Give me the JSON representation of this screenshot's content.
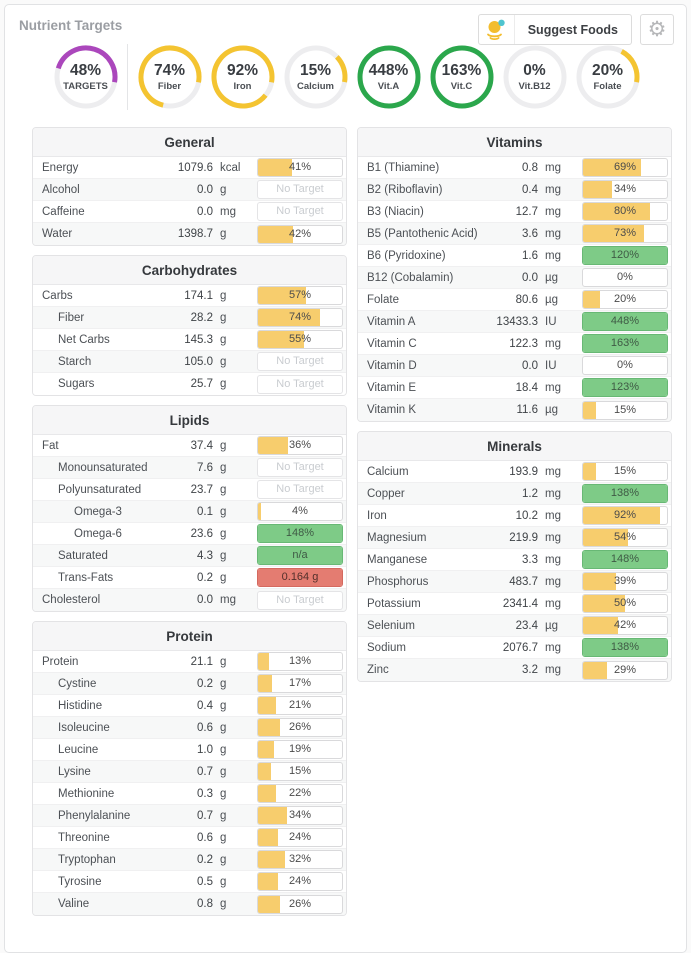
{
  "header": {
    "title": "Nutrient Targets",
    "suggest_button_label": "Suggest Foods"
  },
  "colors": {
    "ring_purple": "#ab47bc",
    "ring_yellow": "#f4c431",
    "ring_green": "#2ba74c",
    "ring_track": "#ededef",
    "bar_yellow": "#f7cd6d",
    "bar_green": "#7ecb87",
    "bar_red": "#e47c71",
    "icon_yellow": "#f3bd2e",
    "icon_teal": "#4fc4cf"
  },
  "rings": [
    {
      "pct": 48,
      "pct_text": "48%",
      "label": "TARGETS",
      "color": "purple"
    },
    {
      "pct": 74,
      "pct_text": "74%",
      "label": "Fiber",
      "color": "yellow"
    },
    {
      "pct": 92,
      "pct_text": "92%",
      "label": "Iron",
      "color": "yellow"
    },
    {
      "pct": 15,
      "pct_text": "15%",
      "label": "Calcium",
      "color": "yellow"
    },
    {
      "pct": 448,
      "pct_text": "448%",
      "label": "Vit.A",
      "color": "green"
    },
    {
      "pct": 163,
      "pct_text": "163%",
      "label": "Vit.C",
      "color": "green"
    },
    {
      "pct": 0,
      "pct_text": "0%",
      "label": "Vit.B12",
      "color": "yellow"
    },
    {
      "pct": 20,
      "pct_text": "20%",
      "label": "Folate",
      "color": "yellow"
    }
  ],
  "layout_columns": {
    "left": [
      "general",
      "carbohydrates",
      "lipids",
      "protein"
    ],
    "right": [
      "vitamins",
      "minerals"
    ]
  },
  "tables": {
    "general": {
      "title": "General",
      "rows": [
        {
          "label": "Energy",
          "value": "1079.6",
          "unit": "kcal",
          "indent": 0,
          "bar": {
            "kind": "yellow",
            "pct": 41,
            "text": "41%"
          }
        },
        {
          "label": "Alcohol",
          "value": "0.0",
          "unit": "g",
          "indent": 0,
          "bar": {
            "kind": "none",
            "text": "No Target"
          }
        },
        {
          "label": "Caffeine",
          "value": "0.0",
          "unit": "mg",
          "indent": 0,
          "bar": {
            "kind": "none",
            "text": "No Target"
          }
        },
        {
          "label": "Water",
          "value": "1398.7",
          "unit": "g",
          "indent": 0,
          "bar": {
            "kind": "yellow",
            "pct": 42,
            "text": "42%"
          }
        }
      ]
    },
    "carbohydrates": {
      "title": "Carbohydrates",
      "rows": [
        {
          "label": "Carbs",
          "value": "174.1",
          "unit": "g",
          "indent": 0,
          "bar": {
            "kind": "yellow",
            "pct": 57,
            "text": "57%"
          }
        },
        {
          "label": "Fiber",
          "value": "28.2",
          "unit": "g",
          "indent": 1,
          "bar": {
            "kind": "yellow",
            "pct": 74,
            "text": "74%"
          }
        },
        {
          "label": "Net Carbs",
          "value": "145.3",
          "unit": "g",
          "indent": 1,
          "bar": {
            "kind": "yellow",
            "pct": 55,
            "text": "55%"
          }
        },
        {
          "label": "Starch",
          "value": "105.0",
          "unit": "g",
          "indent": 1,
          "bar": {
            "kind": "none",
            "text": "No Target"
          }
        },
        {
          "label": "Sugars",
          "value": "25.7",
          "unit": "g",
          "indent": 1,
          "bar": {
            "kind": "none",
            "text": "No Target"
          }
        }
      ]
    },
    "lipids": {
      "title": "Lipids",
      "rows": [
        {
          "label": "Fat",
          "value": "37.4",
          "unit": "g",
          "indent": 0,
          "bar": {
            "kind": "yellow",
            "pct": 36,
            "text": "36%"
          }
        },
        {
          "label": "Monounsaturated",
          "value": "7.6",
          "unit": "g",
          "indent": 1,
          "bar": {
            "kind": "none",
            "text": "No Target"
          }
        },
        {
          "label": "Polyunsaturated",
          "value": "23.7",
          "unit": "g",
          "indent": 1,
          "bar": {
            "kind": "none",
            "text": "No Target"
          }
        },
        {
          "label": "Omega-3",
          "value": "0.1",
          "unit": "g",
          "indent": 2,
          "bar": {
            "kind": "yellow",
            "pct": 4,
            "text": "4%"
          }
        },
        {
          "label": "Omega-6",
          "value": "23.6",
          "unit": "g",
          "indent": 2,
          "bar": {
            "kind": "green",
            "text": "148%"
          }
        },
        {
          "label": "Saturated",
          "value": "4.3",
          "unit": "g",
          "indent": 1,
          "bar": {
            "kind": "green",
            "text": "n/a"
          }
        },
        {
          "label": "Trans-Fats",
          "value": "0.2",
          "unit": "g",
          "indent": 1,
          "bar": {
            "kind": "red",
            "text": "0.164 g"
          }
        },
        {
          "label": "Cholesterol",
          "value": "0.0",
          "unit": "mg",
          "indent": 0,
          "bar": {
            "kind": "none",
            "text": "No Target"
          }
        }
      ]
    },
    "protein": {
      "title": "Protein",
      "rows": [
        {
          "label": "Protein",
          "value": "21.1",
          "unit": "g",
          "indent": 0,
          "bar": {
            "kind": "yellow",
            "pct": 13,
            "text": "13%"
          }
        },
        {
          "label": "Cystine",
          "value": "0.2",
          "unit": "g",
          "indent": 1,
          "bar": {
            "kind": "yellow",
            "pct": 17,
            "text": "17%"
          }
        },
        {
          "label": "Histidine",
          "value": "0.4",
          "unit": "g",
          "indent": 1,
          "bar": {
            "kind": "yellow",
            "pct": 21,
            "text": "21%"
          }
        },
        {
          "label": "Isoleucine",
          "value": "0.6",
          "unit": "g",
          "indent": 1,
          "bar": {
            "kind": "yellow",
            "pct": 26,
            "text": "26%"
          }
        },
        {
          "label": "Leucine",
          "value": "1.0",
          "unit": "g",
          "indent": 1,
          "bar": {
            "kind": "yellow",
            "pct": 19,
            "text": "19%"
          }
        },
        {
          "label": "Lysine",
          "value": "0.7",
          "unit": "g",
          "indent": 1,
          "bar": {
            "kind": "yellow",
            "pct": 15,
            "text": "15%"
          }
        },
        {
          "label": "Methionine",
          "value": "0.3",
          "unit": "g",
          "indent": 1,
          "bar": {
            "kind": "yellow",
            "pct": 22,
            "text": "22%"
          }
        },
        {
          "label": "Phenylalanine",
          "value": "0.7",
          "unit": "g",
          "indent": 1,
          "bar": {
            "kind": "yellow",
            "pct": 34,
            "text": "34%"
          }
        },
        {
          "label": "Threonine",
          "value": "0.6",
          "unit": "g",
          "indent": 1,
          "bar": {
            "kind": "yellow",
            "pct": 24,
            "text": "24%"
          }
        },
        {
          "label": "Tryptophan",
          "value": "0.2",
          "unit": "g",
          "indent": 1,
          "bar": {
            "kind": "yellow",
            "pct": 32,
            "text": "32%"
          }
        },
        {
          "label": "Tyrosine",
          "value": "0.5",
          "unit": "g",
          "indent": 1,
          "bar": {
            "kind": "yellow",
            "pct": 24,
            "text": "24%"
          }
        },
        {
          "label": "Valine",
          "value": "0.8",
          "unit": "g",
          "indent": 1,
          "bar": {
            "kind": "yellow",
            "pct": 26,
            "text": "26%"
          }
        }
      ]
    },
    "vitamins": {
      "title": "Vitamins",
      "rows": [
        {
          "label": "B1 (Thiamine)",
          "value": "0.8",
          "unit": "mg",
          "indent": 0,
          "bar": {
            "kind": "yellow",
            "pct": 69,
            "text": "69%"
          }
        },
        {
          "label": "B2 (Riboflavin)",
          "value": "0.4",
          "unit": "mg",
          "indent": 0,
          "bar": {
            "kind": "yellow",
            "pct": 34,
            "text": "34%"
          }
        },
        {
          "label": "B3 (Niacin)",
          "value": "12.7",
          "unit": "mg",
          "indent": 0,
          "bar": {
            "kind": "yellow",
            "pct": 80,
            "text": "80%"
          }
        },
        {
          "label": "B5 (Pantothenic Acid)",
          "value": "3.6",
          "unit": "mg",
          "indent": 0,
          "bar": {
            "kind": "yellow",
            "pct": 73,
            "text": "73%"
          }
        },
        {
          "label": "B6 (Pyridoxine)",
          "value": "1.6",
          "unit": "mg",
          "indent": 0,
          "bar": {
            "kind": "green",
            "text": "120%"
          }
        },
        {
          "label": "B12 (Cobalamin)",
          "value": "0.0",
          "unit": "µg",
          "indent": 0,
          "bar": {
            "kind": "yellow",
            "pct": 0,
            "text": "0%"
          }
        },
        {
          "label": "Folate",
          "value": "80.6",
          "unit": "µg",
          "indent": 0,
          "bar": {
            "kind": "yellow",
            "pct": 20,
            "text": "20%"
          }
        },
        {
          "label": "Vitamin A",
          "value": "13433.3",
          "unit": "IU",
          "indent": 0,
          "bar": {
            "kind": "green",
            "text": "448%"
          }
        },
        {
          "label": "Vitamin C",
          "value": "122.3",
          "unit": "mg",
          "indent": 0,
          "bar": {
            "kind": "green",
            "text": "163%"
          }
        },
        {
          "label": "Vitamin D",
          "value": "0.0",
          "unit": "IU",
          "indent": 0,
          "bar": {
            "kind": "yellow",
            "pct": 0,
            "text": "0%"
          }
        },
        {
          "label": "Vitamin E",
          "value": "18.4",
          "unit": "mg",
          "indent": 0,
          "bar": {
            "kind": "green",
            "text": "123%"
          }
        },
        {
          "label": "Vitamin K",
          "value": "11.6",
          "unit": "µg",
          "indent": 0,
          "bar": {
            "kind": "yellow",
            "pct": 15,
            "text": "15%"
          }
        }
      ]
    },
    "minerals": {
      "title": "Minerals",
      "rows": [
        {
          "label": "Calcium",
          "value": "193.9",
          "unit": "mg",
          "indent": 0,
          "bar": {
            "kind": "yellow",
            "pct": 15,
            "text": "15%"
          }
        },
        {
          "label": "Copper",
          "value": "1.2",
          "unit": "mg",
          "indent": 0,
          "bar": {
            "kind": "green",
            "text": "138%"
          }
        },
        {
          "label": "Iron",
          "value": "10.2",
          "unit": "mg",
          "indent": 0,
          "bar": {
            "kind": "yellow",
            "pct": 92,
            "text": "92%"
          }
        },
        {
          "label": "Magnesium",
          "value": "219.9",
          "unit": "mg",
          "indent": 0,
          "bar": {
            "kind": "yellow",
            "pct": 54,
            "text": "54%"
          }
        },
        {
          "label": "Manganese",
          "value": "3.3",
          "unit": "mg",
          "indent": 0,
          "bar": {
            "kind": "green",
            "text": "148%"
          }
        },
        {
          "label": "Phosphorus",
          "value": "483.7",
          "unit": "mg",
          "indent": 0,
          "bar": {
            "kind": "yellow",
            "pct": 39,
            "text": "39%"
          }
        },
        {
          "label": "Potassium",
          "value": "2341.4",
          "unit": "mg",
          "indent": 0,
          "bar": {
            "kind": "yellow",
            "pct": 50,
            "text": "50%"
          }
        },
        {
          "label": "Selenium",
          "value": "23.4",
          "unit": "µg",
          "indent": 0,
          "bar": {
            "kind": "yellow",
            "pct": 42,
            "text": "42%"
          }
        },
        {
          "label": "Sodium",
          "value": "2076.7",
          "unit": "mg",
          "indent": 0,
          "bar": {
            "kind": "green",
            "text": "138%"
          }
        },
        {
          "label": "Zinc",
          "value": "3.2",
          "unit": "mg",
          "indent": 0,
          "bar": {
            "kind": "yellow",
            "pct": 29,
            "text": "29%"
          }
        }
      ]
    }
  }
}
